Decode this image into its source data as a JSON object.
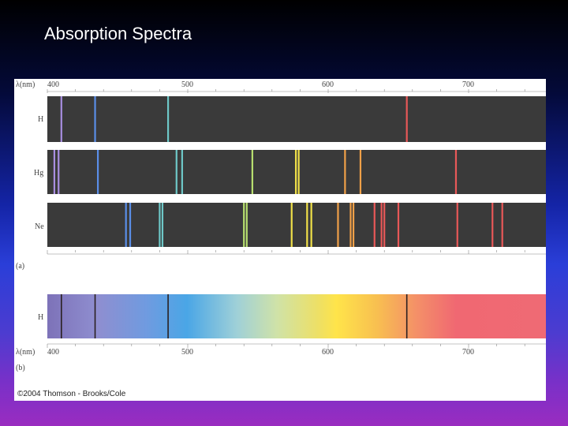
{
  "slide": {
    "title": "Absorption Spectra"
  },
  "figure": {
    "axis_label": "λ(nm)",
    "tick_labels": [
      "400",
      "500",
      "600",
      "700"
    ],
    "tick_values": [
      400,
      500,
      600,
      700
    ],
    "part_a_label": "(a)",
    "part_b_label": "(b)",
    "credit": "©2004 Thomson - Brooks/Cole",
    "emission": [
      {
        "element": "H",
        "lines_nm": [
          410,
          434,
          486,
          656
        ]
      },
      {
        "element": "Hg",
        "lines_nm": [
          405,
          408,
          436,
          492,
          496,
          546,
          577,
          579,
          612,
          623,
          691
        ]
      },
      {
        "element": "Ne",
        "lines_nm": [
          456,
          459,
          480,
          482,
          540,
          542,
          574,
          585,
          588,
          607,
          616,
          618,
          633,
          638,
          640,
          650,
          692,
          717,
          724
        ]
      }
    ],
    "absorption": {
      "element": "H",
      "lines_nm": [
        410,
        434,
        486,
        656
      ]
    }
  }
}
